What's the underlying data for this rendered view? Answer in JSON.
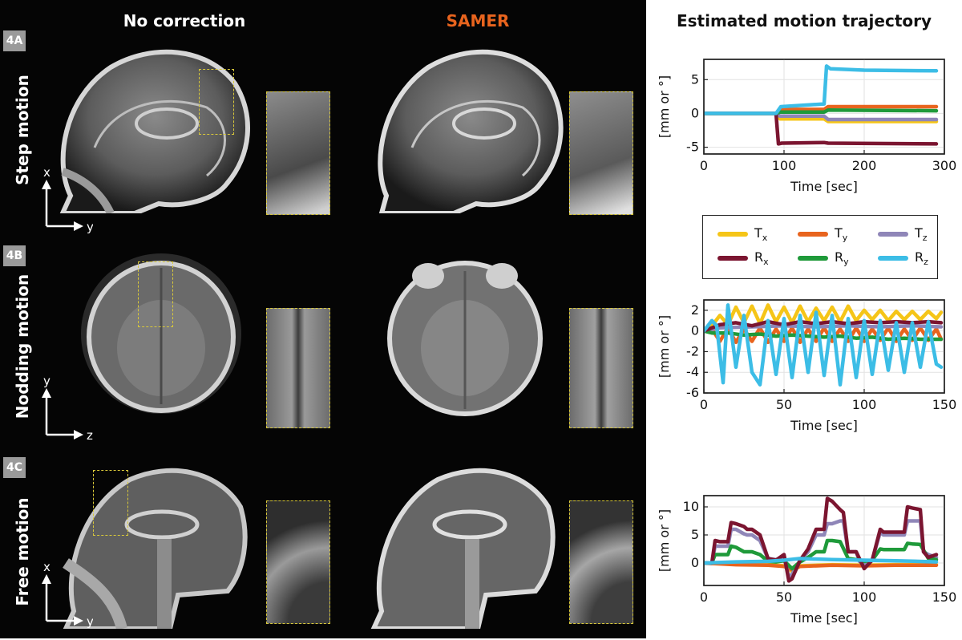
{
  "columns": {
    "no_correction": "No correction",
    "samer": "SAMER",
    "trajectory": "Estimated motion trajectory"
  },
  "rows": [
    {
      "tag": "4A",
      "label": "Step motion",
      "axis_v": "x",
      "axis_h": "y"
    },
    {
      "tag": "4B",
      "label": "Nodding motion",
      "axis_v": "y",
      "axis_h": "z"
    },
    {
      "tag": "4C",
      "label": "Free motion",
      "axis_v": "x",
      "axis_h": "y"
    }
  ],
  "colors": {
    "samer_title": "#e8641e",
    "roi": "#d8c83a",
    "Tx": "#f5c518",
    "Ty": "#e8641e",
    "Tz": "#8f86b8",
    "Rx": "#7b1530",
    "Ry": "#1f9a3a",
    "Rz": "#3cbde6"
  },
  "legend": [
    {
      "key": "Tx",
      "label": "T",
      "sub": "x"
    },
    {
      "key": "Ty",
      "label": "T",
      "sub": "y"
    },
    {
      "key": "Tz",
      "label": "T",
      "sub": "z"
    },
    {
      "key": "Rx",
      "label": "R",
      "sub": "x"
    },
    {
      "key": "Ry",
      "label": "R",
      "sub": "y"
    },
    {
      "key": "Rz",
      "label": "R",
      "sub": "z"
    }
  ],
  "chart_data": [
    {
      "type": "line",
      "xlabel": "Time [sec]",
      "ylabel": "[mm or °]",
      "xlim": [
        0,
        300
      ],
      "ylim": [
        -6,
        8
      ],
      "xticks": [
        0,
        100,
        200,
        300
      ],
      "yticks": [
        -5,
        0,
        5
      ],
      "grid": true,
      "series": [
        {
          "name": "Tx",
          "x": [
            0,
            90,
            95,
            150,
            155,
            290
          ],
          "y": [
            0,
            0,
            -0.8,
            -0.8,
            -1.2,
            -1.2
          ]
        },
        {
          "name": "Ty",
          "x": [
            0,
            90,
            95,
            150,
            155,
            290
          ],
          "y": [
            0,
            0,
            0.6,
            0.6,
            1.0,
            1.0
          ]
        },
        {
          "name": "Tz",
          "x": [
            0,
            90,
            95,
            150,
            155,
            290
          ],
          "y": [
            0,
            0,
            -0.4,
            -0.4,
            -0.9,
            -0.9
          ]
        },
        {
          "name": "Rx",
          "x": [
            0,
            90,
            93,
            97,
            150,
            155,
            290
          ],
          "y": [
            0,
            0,
            -4.5,
            -4.4,
            -4.3,
            -4.4,
            -4.5
          ]
        },
        {
          "name": "Ry",
          "x": [
            0,
            90,
            95,
            150,
            155,
            290
          ],
          "y": [
            0,
            0,
            0.2,
            0.2,
            0.5,
            0.4
          ]
        },
        {
          "name": "Rz",
          "x": [
            0,
            90,
            96,
            150,
            153,
            158,
            200,
            290
          ],
          "y": [
            0,
            0,
            1.0,
            1.4,
            7.0,
            6.6,
            6.4,
            6.3
          ]
        }
      ]
    },
    {
      "type": "line",
      "xlabel": "Time [sec]",
      "ylabel": "[mm or °]",
      "xlim": [
        0,
        150
      ],
      "ylim": [
        -6,
        3
      ],
      "xticks": [
        0,
        50,
        100,
        150
      ],
      "yticks": [
        -6,
        -4,
        -2,
        0,
        2
      ],
      "grid": true,
      "series": [
        {
          "name": "Tx",
          "x": [
            0,
            5,
            10,
            15,
            20,
            25,
            30,
            35,
            40,
            45,
            50,
            55,
            60,
            65,
            70,
            75,
            80,
            85,
            90,
            95,
            100,
            105,
            110,
            115,
            120,
            125,
            130,
            135,
            140,
            145,
            148
          ],
          "y": [
            0,
            0.5,
            1.5,
            0.6,
            2.3,
            0.8,
            2.4,
            0.7,
            2.5,
            0.9,
            2.3,
            0.8,
            2.4,
            0.9,
            2.2,
            1.0,
            2.3,
            0.9,
            2.4,
            1.0,
            2.0,
            1.1,
            2.0,
            1.0,
            1.9,
            1.1,
            1.9,
            1.1,
            1.9,
            1.2,
            1.8
          ]
        },
        {
          "name": "Ty",
          "x": [
            0,
            5,
            10,
            15,
            20,
            25,
            30,
            35,
            40,
            45,
            50,
            55,
            60,
            65,
            70,
            75,
            80,
            85,
            90,
            95,
            100,
            105,
            110,
            115,
            120,
            125,
            130,
            135,
            140,
            145,
            148
          ],
          "y": [
            0,
            0.2,
            -1.0,
            0.3,
            -1.1,
            0.2,
            -1.0,
            0.3,
            -1.1,
            0.2,
            -1.0,
            0.3,
            -1.1,
            0.2,
            -1.0,
            0.3,
            -1.0,
            0.2,
            -1.0,
            0.3,
            -1.0,
            0.2,
            -0.9,
            0.3,
            -1.0,
            0.2,
            -0.9,
            0.3,
            -0.9,
            0.2,
            -0.8
          ]
        },
        {
          "name": "Tz",
          "x": [
            0,
            10,
            30,
            50,
            70,
            90,
            110,
            130,
            148
          ],
          "y": [
            0,
            0.3,
            0.4,
            0.5,
            0.4,
            0.5,
            0.4,
            0.5,
            0.4
          ]
        },
        {
          "name": "Rx",
          "x": [
            0,
            10,
            20,
            30,
            40,
            50,
            60,
            70,
            80,
            90,
            100,
            110,
            120,
            130,
            140,
            148
          ],
          "y": [
            0,
            0.6,
            0.8,
            0.5,
            0.9,
            0.6,
            0.9,
            0.7,
            0.9,
            0.7,
            0.9,
            0.8,
            0.9,
            0.8,
            0.9,
            0.8
          ]
        },
        {
          "name": "Ry",
          "x": [
            0,
            5,
            15,
            25,
            35,
            45,
            55,
            65,
            75,
            85,
            95,
            105,
            115,
            125,
            135,
            148
          ],
          "y": [
            0,
            -0.2,
            -0.2,
            -0.4,
            -0.3,
            -0.5,
            -0.4,
            -0.5,
            -0.6,
            -0.5,
            -0.7,
            -0.6,
            -0.8,
            -0.7,
            -0.8,
            -0.8
          ]
        },
        {
          "name": "Rz",
          "x": [
            0,
            5,
            8,
            12,
            15,
            20,
            25,
            30,
            35,
            40,
            45,
            50,
            55,
            60,
            65,
            70,
            75,
            80,
            85,
            90,
            95,
            100,
            105,
            110,
            115,
            120,
            125,
            130,
            135,
            140,
            145,
            148
          ],
          "y": [
            0,
            1.0,
            0.5,
            -5.0,
            2.5,
            -3.5,
            1.5,
            -4.0,
            -5.2,
            1.0,
            -4.2,
            1.2,
            -4.5,
            1.5,
            -4.0,
            1.8,
            -4.3,
            1.5,
            -5.2,
            1.2,
            -4.5,
            1.0,
            -4.2,
            1.0,
            -3.8,
            0.8,
            -4.0,
            0.8,
            -3.5,
            0.9,
            -3.2,
            -3.5
          ]
        }
      ]
    },
    {
      "type": "line",
      "xlabel": "Time [sec]",
      "ylabel": "[mm or °]",
      "xlim": [
        0,
        150
      ],
      "ylim": [
        -4,
        12
      ],
      "xticks": [
        0,
        50,
        100,
        150
      ],
      "yticks": [
        0,
        5,
        10
      ],
      "grid": true,
      "series": [
        {
          "name": "Tx",
          "x": [
            0,
            20,
            40,
            50,
            55,
            60,
            80,
            100,
            120,
            145
          ],
          "y": [
            0,
            -0.2,
            -0.3,
            -0.5,
            -1.5,
            -0.5,
            -0.3,
            -0.4,
            -0.3,
            -0.3
          ]
        },
        {
          "name": "Ty",
          "x": [
            0,
            20,
            40,
            50,
            55,
            60,
            80,
            100,
            120,
            145
          ],
          "y": [
            0,
            -0.3,
            -0.4,
            -0.6,
            -1.2,
            -0.6,
            -0.4,
            -0.5,
            -0.4,
            -0.4
          ]
        },
        {
          "name": "Tz",
          "x": [
            0,
            5,
            7,
            10,
            15,
            17,
            20,
            25,
            27,
            30,
            35,
            40,
            45,
            50,
            53,
            55,
            60,
            65,
            70,
            75,
            77,
            80,
            85,
            87,
            90,
            95,
            97,
            100,
            105,
            110,
            112,
            115,
            120,
            125,
            127,
            130,
            135,
            137,
            140,
            145
          ],
          "y": [
            0,
            0,
            3.0,
            3.0,
            3.0,
            6.0,
            6.0,
            5.2,
            5.0,
            5.0,
            4.0,
            0.8,
            0.6,
            1.0,
            -2.5,
            -2.0,
            0.5,
            2.0,
            5.0,
            5.0,
            7.0,
            7.0,
            7.5,
            7.5,
            2.0,
            2.0,
            0.3,
            -0.3,
            0.5,
            5.5,
            5.0,
            5.0,
            5.0,
            5.0,
            7.5,
            7.5,
            7.5,
            2.0,
            1.5,
            1.0
          ]
        },
        {
          "name": "Rx",
          "x": [
            0,
            5,
            7,
            10,
            15,
            17,
            20,
            25,
            27,
            30,
            35,
            40,
            45,
            50,
            53,
            55,
            60,
            65,
            70,
            75,
            77,
            80,
            85,
            87,
            90,
            95,
            97,
            100,
            105,
            110,
            112,
            115,
            120,
            125,
            127,
            130,
            135,
            137,
            140,
            145
          ],
          "y": [
            0,
            0,
            4.0,
            3.8,
            3.8,
            7.2,
            7.0,
            6.5,
            6.0,
            6.0,
            5.0,
            0.8,
            0.5,
            1.5,
            -3.2,
            -2.8,
            0.5,
            2.5,
            6.0,
            6.0,
            11.5,
            11.0,
            9.5,
            9.0,
            2.0,
            2.0,
            0.8,
            -1.0,
            0.5,
            6.0,
            5.5,
            5.5,
            5.5,
            5.5,
            10.0,
            9.8,
            9.5,
            2.0,
            1.0,
            1.5
          ]
        },
        {
          "name": "Ry",
          "x": [
            0,
            5,
            7,
            10,
            15,
            17,
            20,
            25,
            27,
            30,
            35,
            40,
            45,
            50,
            55,
            60,
            65,
            70,
            75,
            77,
            80,
            85,
            90,
            95,
            100,
            105,
            110,
            112,
            115,
            120,
            125,
            127,
            130,
            135,
            140,
            145
          ],
          "y": [
            0,
            0,
            1.5,
            1.5,
            1.5,
            3.0,
            2.8,
            2.0,
            2.0,
            2.0,
            1.5,
            0.3,
            0.2,
            0.4,
            -1.0,
            0.2,
            1.0,
            2.0,
            2.0,
            4.0,
            4.0,
            3.8,
            0.8,
            0.6,
            0.3,
            0.5,
            2.5,
            2.4,
            2.4,
            2.4,
            2.4,
            3.5,
            3.4,
            3.3,
            0.8,
            0.6
          ]
        },
        {
          "name": "Rz",
          "x": [
            0,
            20,
            40,
            50,
            60,
            80,
            100,
            120,
            145
          ],
          "y": [
            0,
            0.2,
            0.3,
            0.5,
            0.8,
            0.6,
            0.5,
            0.4,
            0.2
          ]
        }
      ]
    }
  ]
}
